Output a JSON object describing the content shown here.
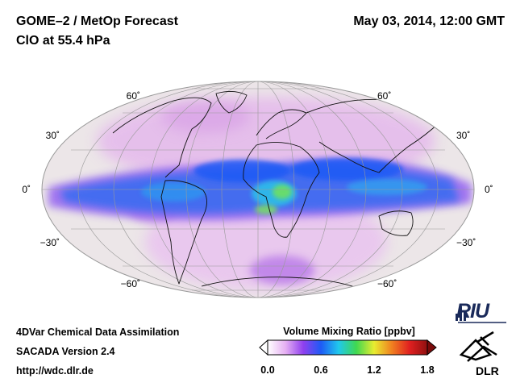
{
  "header": {
    "title": "GOME–2 / MetOp Forecast",
    "subtitle": "ClO at 55.4 hPa",
    "datetime": "May 03, 2014, 12:00 GMT"
  },
  "map": {
    "projection": "Mollweide",
    "lat_labels_left": [
      "60˚",
      "30˚",
      "0˚",
      "−30˚",
      "−60˚"
    ],
    "lat_labels_right": [
      "60˚",
      "30˚",
      "0˚",
      "−30˚",
      "−60˚"
    ],
    "colors": {
      "ocean": "#ece6e8",
      "band": "#3a6cf0",
      "peak": "#6ee060",
      "halo": "#e4b6ec",
      "grid": "#888888"
    }
  },
  "colorbar": {
    "title": "Volume Mixing Ratio [ppbv]",
    "ticks": [
      "0.0",
      "0.6",
      "1.2",
      "1.8"
    ],
    "stops": [
      "#ffffff",
      "#e6b0f2",
      "#9040ee",
      "#1e5af5",
      "#20c8ec",
      "#40d850",
      "#e8ec30",
      "#f08020",
      "#e02020",
      "#901010"
    ]
  },
  "footer": {
    "line1": "4DVar Chemical Data Assimilation",
    "line2": "SACADA Version 2.4",
    "line3": "http://wdc.dlr.de"
  },
  "logos": {
    "riu": "RIU",
    "dlr": "DLR"
  }
}
